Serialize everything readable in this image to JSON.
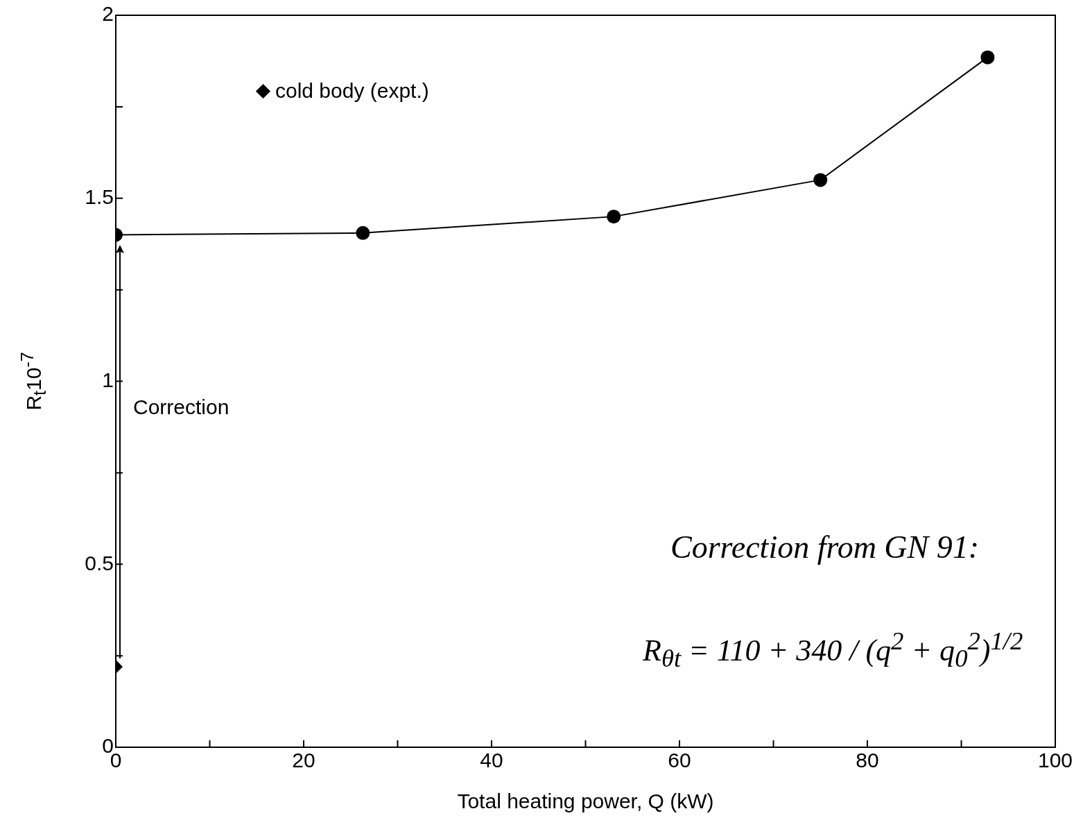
{
  "chart_data": {
    "type": "line",
    "xlabel": "Total heating power, Q (kW)",
    "ylabel": "R$_{t}$10$^{-7}$",
    "xlim": [
      0,
      100
    ],
    "xticks": [
      0,
      {
        "value": 10,
        "label": null
      },
      20,
      {
        "value": 30,
        "label": null
      },
      40,
      {
        "value": 50,
        "label": null
      },
      60,
      {
        "value": 70,
        "label": null
      },
      80,
      {
        "value": 90,
        "label": null
      },
      100
    ],
    "ylim": [
      0,
      2
    ],
    "yticks": [
      0,
      {
        "value": 0.25,
        "label": null
      },
      0.5,
      {
        "value": 0.75,
        "label": null
      },
      1,
      {
        "value": 1.25,
        "label": null
      },
      1.5,
      {
        "value": 1.75,
        "label": null
      },
      2
    ],
    "grid": false,
    "legend": "top left",
    "series": [
      {
        "marker": "circle",
        "color": "#000000",
        "x": [
          0,
          26.3,
          53,
          75,
          92.8
        ],
        "values": [
          1.4,
          1.405,
          1.45,
          1.55,
          1.885
        ]
      },
      {
        "type": "scatter",
        "marker": "diamond",
        "name": "cold body (expt.)",
        "color": "#000000",
        "x": [
          0
        ],
        "values": [
          0.22
        ]
      }
    ],
    "annotations": [
      "Correction",
      "Correction from GN 91:",
      "R$_{θt}$ = 110 + 340 / (q$^{2}$ + q$_{0}$$^{2}$)$^{1/2}$"
    ]
  }
}
